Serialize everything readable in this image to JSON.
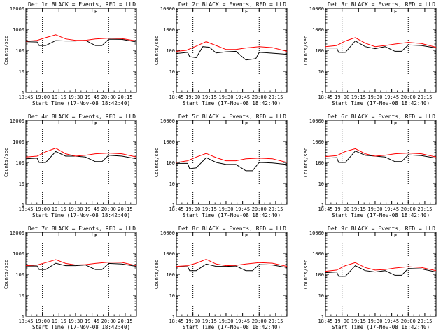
{
  "chart_data": {
    "type": "line",
    "x_tick_labels": [
      "18:45",
      "19:00",
      "19:15",
      "19:30",
      "19:45",
      "20:00",
      "20:15"
    ],
    "x_range_hours": [
      18.75,
      20.42
    ],
    "y_tick_labels": [
      "1",
      "10",
      "100",
      "1000",
      "10000"
    ],
    "ylim": [
      1,
      10000
    ],
    "yscale": "log",
    "ylabel": "Counts/sec",
    "xlabel": "Start Time (17-Nov-08 18:42:40)",
    "marker_times": [
      19.0,
      20.0
    ],
    "grid": false,
    "colors": {
      "events": "#000000",
      "lld": "#ff0000",
      "markers": "#000000"
    },
    "panels": [
      {
        "title": "Det 1r BLACK = Events, RED = LLD",
        "series": [
          {
            "key": "events",
            "x": [
              18.75,
              18.92,
              18.95,
              19.05,
              19.2,
              19.35,
              19.5,
              19.65,
              19.8,
              19.9,
              20.0,
              20.2,
              20.42
            ],
            "values": [
              260,
              250,
              170,
              170,
              290,
              280,
              280,
              300,
              170,
              170,
              340,
              330,
              250
            ]
          },
          {
            "key": "lld",
            "x": [
              18.75,
              18.92,
              19.05,
              19.2,
              19.35,
              19.5,
              19.65,
              19.8,
              20.0,
              20.2,
              20.42
            ],
            "values": [
              270,
              300,
              400,
              550,
              350,
              300,
              300,
              350,
              380,
              360,
              280
            ]
          }
        ]
      },
      {
        "title": "Det 2r BLACK = Events, RED = LLD",
        "series": [
          {
            "key": "events",
            "x": [
              18.75,
              18.92,
              18.95,
              19.05,
              19.15,
              19.25,
              19.35,
              19.5,
              19.65,
              19.8,
              19.95,
              20.0,
              20.15,
              20.42
            ],
            "values": [
              70,
              80,
              50,
              45,
              150,
              140,
              75,
              85,
              90,
              35,
              40,
              80,
              75,
              65
            ]
          },
          {
            "key": "lld",
            "x": [
              18.75,
              18.9,
              19.05,
              19.2,
              19.35,
              19.5,
              19.65,
              19.8,
              20.0,
              20.2,
              20.42
            ],
            "values": [
              90,
              100,
              160,
              260,
              170,
              110,
              110,
              130,
              150,
              135,
              90
            ]
          }
        ]
      },
      {
        "title": "Det 3r BLACK = Events, RED = LLD",
        "series": [
          {
            "key": "events",
            "x": [
              18.75,
              18.92,
              18.95,
              19.05,
              19.2,
              19.35,
              19.5,
              19.65,
              19.8,
              19.9,
              20.0,
              20.2,
              20.42
            ],
            "values": [
              130,
              130,
              80,
              80,
              280,
              150,
              120,
              150,
              90,
              90,
              180,
              170,
              130
            ]
          },
          {
            "key": "lld",
            "x": [
              18.75,
              18.92,
              19.05,
              19.2,
              19.35,
              19.5,
              19.65,
              19.8,
              20.0,
              20.2,
              20.42
            ],
            "values": [
              150,
              170,
              280,
              400,
              220,
              150,
              170,
              200,
              240,
              210,
              140
            ]
          }
        ]
      },
      {
        "title": "Det 4r BLACK = Events, RED = LLD",
        "series": [
          {
            "key": "events",
            "x": [
              18.75,
              18.92,
              18.95,
              19.05,
              19.2,
              19.35,
              19.5,
              19.65,
              19.8,
              19.9,
              20.0,
              20.2,
              20.42
            ],
            "values": [
              150,
              160,
              100,
              100,
              330,
              200,
              200,
              180,
              110,
              110,
              220,
              200,
              150
            ]
          },
          {
            "key": "lld",
            "x": [
              18.75,
              18.92,
              19.05,
              19.2,
              19.35,
              19.5,
              19.65,
              19.8,
              20.0,
              20.2,
              20.42
            ],
            "values": [
              180,
              200,
              320,
              480,
              260,
              200,
              220,
              260,
              280,
              260,
              180
            ]
          }
        ]
      },
      {
        "title": "Det 5r BLACK = Events, RED = LLD",
        "series": [
          {
            "key": "events",
            "x": [
              18.75,
              18.92,
              18.95,
              19.05,
              19.2,
              19.35,
              19.5,
              19.65,
              19.8,
              19.9,
              20.0,
              20.2,
              20.42
            ],
            "values": [
              90,
              90,
              50,
              55,
              170,
              100,
              80,
              80,
              40,
              40,
              100,
              95,
              80
            ]
          },
          {
            "key": "lld",
            "x": [
              18.75,
              18.92,
              19.05,
              19.2,
              19.35,
              19.5,
              19.65,
              19.8,
              20.0,
              20.2,
              20.42
            ],
            "values": [
              100,
              120,
              180,
              270,
              170,
              120,
              120,
              150,
              160,
              150,
              100
            ]
          }
        ]
      },
      {
        "title": "Det 6r BLACK = Events, RED = LLD",
        "series": [
          {
            "key": "events",
            "x": [
              18.75,
              18.92,
              18.95,
              19.05,
              19.2,
              19.35,
              19.5,
              19.65,
              19.8,
              19.9,
              20.0,
              20.2,
              20.42
            ],
            "values": [
              160,
              170,
              100,
              100,
              350,
              220,
              200,
              180,
              110,
              110,
              230,
              210,
              160
            ]
          },
          {
            "key": "lld",
            "x": [
              18.75,
              18.92,
              19.05,
              19.2,
              19.35,
              19.5,
              19.65,
              19.8,
              20.0,
              20.2,
              20.42
            ],
            "values": [
              190,
              210,
              330,
              450,
              260,
              200,
              220,
              260,
              280,
              260,
              180
            ]
          }
        ]
      },
      {
        "title": "Det 7r BLACK = Events, RED = LLD",
        "series": [
          {
            "key": "events",
            "x": [
              18.75,
              18.92,
              18.95,
              19.05,
              19.2,
              19.35,
              19.5,
              19.65,
              19.8,
              19.9,
              20.0,
              20.2,
              20.42
            ],
            "values": [
              250,
              250,
              170,
              170,
              340,
              260,
              260,
              280,
              170,
              170,
              330,
              310,
              240
            ]
          },
          {
            "key": "lld",
            "x": [
              18.75,
              18.92,
              19.05,
              19.2,
              19.35,
              19.5,
              19.65,
              19.8,
              20.0,
              20.2,
              20.42
            ],
            "values": [
              260,
              280,
              360,
              500,
              330,
              280,
              290,
              330,
              380,
              370,
              260
            ]
          }
        ]
      },
      {
        "title": "Det 8r BLACK = Events, RED = LLD",
        "series": [
          {
            "key": "events",
            "x": [
              18.75,
              18.92,
              18.95,
              19.05,
              19.2,
              19.35,
              19.5,
              19.65,
              19.8,
              19.9,
              20.0,
              20.2,
              20.42
            ],
            "values": [
              230,
              230,
              150,
              150,
              310,
              240,
              240,
              250,
              150,
              150,
              290,
              280,
              210
            ]
          },
          {
            "key": "lld",
            "x": [
              18.75,
              18.92,
              19.05,
              19.2,
              19.35,
              19.5,
              19.65,
              19.8,
              20.0,
              20.2,
              20.42
            ],
            "values": [
              240,
              260,
              340,
              520,
              310,
              260,
              270,
              310,
              360,
              340,
              240
            ]
          }
        ]
      },
      {
        "title": "Det 9r BLACK = Events, RED = LLD",
        "series": [
          {
            "key": "events",
            "x": [
              18.75,
              18.92,
              18.95,
              19.05,
              19.2,
              19.35,
              19.5,
              19.65,
              19.8,
              19.9,
              20.0,
              20.2,
              20.42
            ],
            "values": [
              120,
              130,
              80,
              80,
              260,
              150,
              130,
              150,
              90,
              90,
              190,
              180,
              130
            ]
          },
          {
            "key": "lld",
            "x": [
              18.75,
              18.92,
              19.05,
              19.2,
              19.35,
              19.5,
              19.65,
              19.8,
              20.0,
              20.2,
              20.42
            ],
            "values": [
              140,
              160,
              260,
              360,
              210,
              160,
              170,
              200,
              230,
              210,
              150
            ]
          }
        ]
      }
    ]
  }
}
